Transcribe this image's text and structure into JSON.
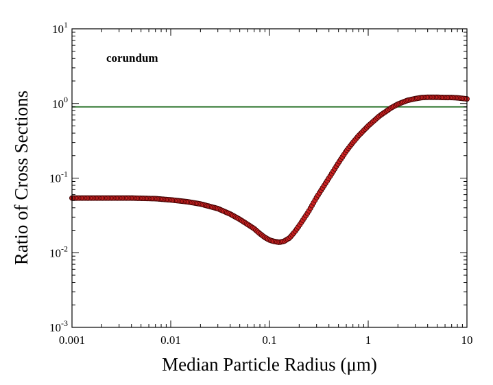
{
  "chart_data": {
    "type": "scatter",
    "xlabel": "Median Particle Radius (μm)",
    "ylabel": "Ratio of Cross Sections",
    "annotation": "corundum",
    "xscale": "log",
    "yscale": "log",
    "xlim": [
      0.001,
      10
    ],
    "ylim": [
      0.001,
      10
    ],
    "x_ticks": [
      {
        "value": 0.001,
        "label": "0.001"
      },
      {
        "value": 0.01,
        "label": "0.01"
      },
      {
        "value": 0.1,
        "label": "0.1"
      },
      {
        "value": 1,
        "label": "1"
      },
      {
        "value": 10,
        "label": "10"
      }
    ],
    "y_ticks": [
      {
        "value": 0.001,
        "base": "10",
        "exp": "-3"
      },
      {
        "value": 0.01,
        "base": "10",
        "exp": "-2"
      },
      {
        "value": 0.1,
        "base": "10",
        "exp": "-1"
      },
      {
        "value": 1,
        "base": "10",
        "exp": "0"
      },
      {
        "value": 10,
        "base": "10",
        "exp": "1"
      }
    ],
    "grid": false,
    "reference_line": {
      "y": 0.9,
      "color": "#1f6b1f"
    },
    "series": [
      {
        "marker_color": "#cc2222",
        "marker_edge": "#3a0000",
        "points": [
          [
            0.001,
            0.054
          ],
          [
            0.002,
            0.054
          ],
          [
            0.004,
            0.054
          ],
          [
            0.007,
            0.053
          ],
          [
            0.01,
            0.051
          ],
          [
            0.015,
            0.048
          ],
          [
            0.02,
            0.045
          ],
          [
            0.03,
            0.039
          ],
          [
            0.04,
            0.033
          ],
          [
            0.05,
            0.028
          ],
          [
            0.06,
            0.024
          ],
          [
            0.07,
            0.021
          ],
          [
            0.08,
            0.018
          ],
          [
            0.09,
            0.016
          ],
          [
            0.1,
            0.0148
          ],
          [
            0.11,
            0.0142
          ],
          [
            0.125,
            0.0138
          ],
          [
            0.14,
            0.0142
          ],
          [
            0.16,
            0.0158
          ],
          [
            0.18,
            0.019
          ],
          [
            0.2,
            0.023
          ],
          [
            0.25,
            0.036
          ],
          [
            0.3,
            0.055
          ],
          [
            0.4,
            0.1
          ],
          [
            0.5,
            0.16
          ],
          [
            0.6,
            0.23
          ],
          [
            0.7,
            0.3
          ],
          [
            0.8,
            0.37
          ],
          [
            1.0,
            0.5
          ],
          [
            1.3,
            0.68
          ],
          [
            1.7,
            0.87
          ],
          [
            2.0,
            0.98
          ],
          [
            2.5,
            1.1
          ],
          [
            3.0,
            1.16
          ],
          [
            3.5,
            1.2
          ],
          [
            4.0,
            1.21
          ],
          [
            5.0,
            1.21
          ],
          [
            6.0,
            1.2
          ],
          [
            7.0,
            1.2
          ],
          [
            8.0,
            1.19
          ],
          [
            10.0,
            1.15
          ]
        ]
      }
    ]
  }
}
